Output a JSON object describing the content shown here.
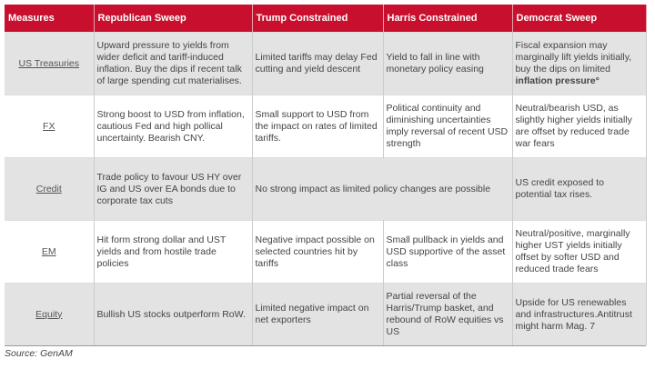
{
  "table": {
    "header": [
      "Measures",
      "Republican Sweep",
      "Trump Constrained",
      "Harris Constrained",
      "Democrat Sweep"
    ],
    "rows": [
      {
        "measure": "US Treasuries",
        "cells": [
          "Upward pressure to yields from wider deficit and tariff-induced inflation. Buy the dips if recent talk of large spending cut materialises.",
          "Limited  tariffs  may delay Fed cutting and yield descent",
          "Yield to fall in line with monetary policy easing",
          {
            "text": "Fiscal expansion may marginally lift yields initially, buy the dips on limited",
            "bold": "inflation pressure°"
          }
        ]
      },
      {
        "measure": "FX",
        "cells": [
          "Strong boost to USD from inflation, cautious Fed and high pollical uncertainty. Bearish CNY.",
          "Small support to USD from the impact on rates of limited tariffs.",
          "Political continuity and diminishing uncertainties imply reversal of recent USD strength",
          "Neutral/bearish USD, as slightly higher yields initially are offset by reduced trade war fears"
        ]
      },
      {
        "measure": "Credit",
        "cells": [
          "Trade policy to favour US HY over IG and US over EA bonds due to corporate tax cuts",
          "No strong impact as limited policy changes are possible",
          "US credit exposed to potential tax rises."
        ]
      },
      {
        "measure": "EM",
        "cells": [
          "Hit form strong dollar and UST yields and from hostile trade policies",
          "Negative impact possible on selected countries hit by tariffs",
          "Small pullback in yields and USD supportive of the asset class",
          "Neutral/positive, marginally higher UST yields initially offset by softer USD and reduced trade  fears"
        ]
      },
      {
        "measure": "Equity",
        "cells": [
          "Bullish US stocks outperform RoW.",
          "Limited negative impact on net exporters",
          "Partial reversal of the Harris/Trump basket, and rebound of RoW equities vs US",
          "Upside for US renewables and infrastructures.Antitrust might harm Mag. 7"
        ]
      }
    ]
  },
  "source": "Source: GenAM"
}
